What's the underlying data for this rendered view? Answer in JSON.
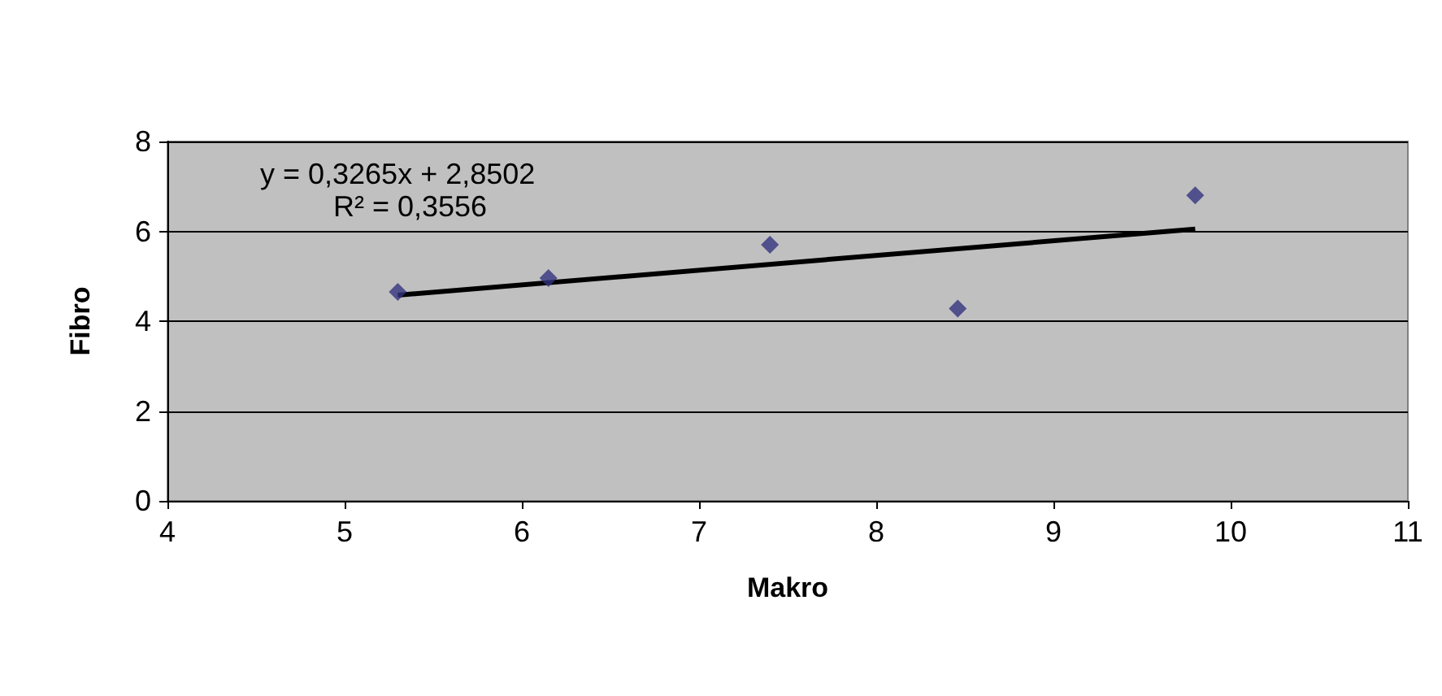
{
  "chart_data": {
    "type": "scatter",
    "xlabel": "Makro",
    "ylabel": "Fibro",
    "xlim": [
      4,
      11
    ],
    "xticks": [
      4,
      5,
      6,
      7,
      8,
      9,
      10,
      11
    ],
    "ylim": [
      0,
      8
    ],
    "yticks": [
      0,
      2,
      4,
      6,
      8
    ],
    "grid": "y",
    "annotations": [
      "y = 0,3265x + 2,8502",
      "R² = 0,3556"
    ],
    "series": [
      {
        "color": "#333380",
        "marker": "diamond",
        "x": [
          5.3,
          6.15,
          7.4,
          8.46,
          9.8
        ],
        "values": [
          4.65,
          4.96,
          5.7,
          4.28,
          6.8
        ]
      },
      {
        "type": "line",
        "color": "#000000",
        "marker": "none",
        "line_style": "solid",
        "x": [
          5.3,
          9.8
        ],
        "values": [
          4.58,
          6.05
        ]
      }
    ]
  }
}
